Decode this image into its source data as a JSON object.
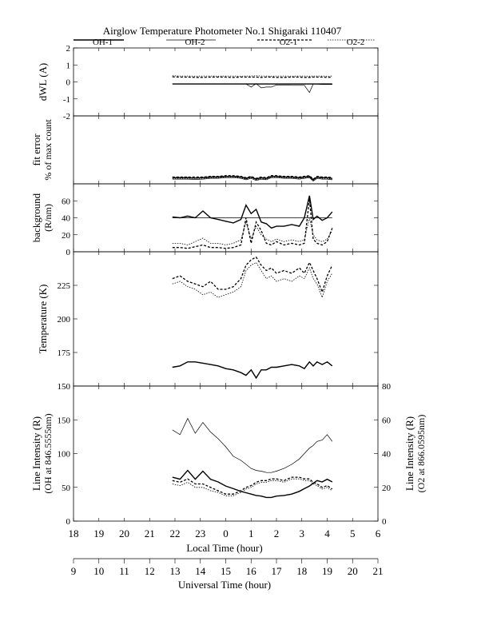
{
  "title": "Airglow Temperature Photometer No.1   Shigaraki   110407",
  "legend": [
    {
      "label": "OH-1",
      "style": "solid-thick"
    },
    {
      "label": "OH-2",
      "style": "solid-thin"
    },
    {
      "label": "O2-1",
      "style": "dashed-thick"
    },
    {
      "label": "O2-2",
      "style": "dotted-thin"
    }
  ],
  "x_axes": {
    "local": {
      "label": "Local Time (hour)",
      "ticks": [
        "18",
        "19",
        "20",
        "21",
        "22",
        "23",
        "0",
        "1",
        "2",
        "3",
        "4",
        "5",
        "6"
      ]
    },
    "universal": {
      "label": "Universal Time (hour)",
      "ticks": [
        "9",
        "10",
        "11",
        "12",
        "13",
        "14",
        "15",
        "16",
        "17",
        "18",
        "19",
        "20",
        "21"
      ]
    }
  },
  "chart_data": [
    {
      "type": "line",
      "panel": "dwl",
      "ylabel": "dWL (A)",
      "ylim": [
        -2,
        2
      ],
      "yticks": [
        "2",
        "1",
        "0",
        "-1",
        "-2"
      ],
      "x": [
        12.9,
        13.2,
        13.5,
        13.8,
        14.1,
        14.4,
        14.7,
        15.0,
        15.3,
        15.6,
        15.8,
        16.0,
        16.2,
        16.4,
        16.6,
        16.8,
        17.0,
        17.3,
        17.6,
        17.9,
        18.1,
        18.3,
        18.45,
        18.6,
        18.8,
        19.0,
        19.2
      ],
      "series": [
        {
          "name": "OH-1",
          "values": [
            -0.12,
            -0.12,
            -0.12,
            -0.12,
            -0.12,
            -0.12,
            -0.12,
            -0.12,
            -0.12,
            -0.12,
            -0.12,
            -0.12,
            -0.12,
            -0.12,
            -0.12,
            -0.12,
            -0.12,
            -0.12,
            -0.12,
            -0.12,
            -0.12,
            -0.12,
            -0.12,
            -0.12,
            -0.12,
            -0.12,
            -0.12
          ]
        },
        {
          "name": "OH-2",
          "values": [
            -0.12,
            -0.12,
            -0.12,
            -0.12,
            -0.12,
            -0.12,
            -0.12,
            -0.12,
            -0.12,
            -0.12,
            -0.12,
            -0.3,
            -0.1,
            -0.35,
            -0.3,
            -0.3,
            -0.18,
            -0.18,
            -0.2,
            -0.2,
            -0.2,
            -0.62,
            -0.12,
            -0.12,
            -0.15,
            -0.15,
            -0.15
          ]
        },
        {
          "name": "O2-1",
          "values": [
            0.3,
            0.28,
            0.28,
            0.27,
            0.27,
            0.28,
            0.28,
            0.28,
            0.27,
            0.28,
            0.28,
            0.28,
            0.28,
            0.27,
            0.28,
            0.28,
            0.27,
            0.27,
            0.28,
            0.28,
            0.27,
            0.27,
            0.28,
            0.28,
            0.28,
            0.27,
            0.28
          ]
        },
        {
          "name": "O2-2",
          "values": [
            0.36,
            0.35,
            0.35,
            0.34,
            0.35,
            0.35,
            0.34,
            0.35,
            0.35,
            0.34,
            0.35,
            0.35,
            0.36,
            0.35,
            0.35,
            0.34,
            0.35,
            0.35,
            0.34,
            0.35,
            0.35,
            0.34,
            0.35,
            0.35,
            0.35,
            0.34,
            0.35
          ]
        }
      ]
    },
    {
      "type": "line",
      "panel": "fit_error",
      "ylabel": "fit error",
      "ylabel2": "% of max count",
      "ylim": [
        0,
        10
      ],
      "x": [
        12.9,
        13.2,
        13.5,
        13.8,
        14.1,
        14.4,
        14.7,
        15.0,
        15.3,
        15.6,
        15.8,
        16.0,
        16.2,
        16.4,
        16.6,
        16.8,
        17.0,
        17.3,
        17.6,
        17.9,
        18.1,
        18.3,
        18.45,
        18.6,
        18.8,
        19.0,
        19.2
      ],
      "series": [
        {
          "name": "OH-1",
          "values": [
            0.9,
            0.9,
            0.9,
            0.85,
            0.9,
            1.0,
            1.0,
            1.1,
            1.1,
            1.0,
            0.8,
            1.0,
            0.7,
            0.9,
            0.8,
            1.1,
            1.1,
            1.0,
            1.0,
            0.9,
            1.0,
            1.1,
            0.6,
            1.0,
            0.9,
            0.9,
            0.8
          ]
        },
        {
          "name": "OH-2",
          "values": [
            0.7,
            0.7,
            0.7,
            0.65,
            0.7,
            0.8,
            0.8,
            0.9,
            0.9,
            0.8,
            0.6,
            0.8,
            0.5,
            0.7,
            0.6,
            0.9,
            0.9,
            0.8,
            0.8,
            0.7,
            0.8,
            0.9,
            0.4,
            0.8,
            0.7,
            0.7,
            0.6
          ]
        },
        {
          "name": "O2-1",
          "values": [
            1.0,
            1.0,
            1.0,
            1.0,
            1.0,
            1.1,
            1.1,
            1.2,
            1.2,
            1.1,
            0.9,
            1.1,
            0.8,
            1.0,
            0.9,
            1.2,
            1.2,
            1.1,
            1.1,
            1.0,
            1.1,
            1.2,
            0.7,
            1.1,
            1.0,
            1.0,
            0.9
          ]
        },
        {
          "name": "O2-2",
          "values": [
            0.8,
            0.8,
            0.8,
            0.8,
            0.8,
            0.9,
            0.9,
            1.0,
            1.0,
            0.9,
            0.7,
            0.9,
            0.6,
            0.8,
            0.7,
            1.0,
            1.0,
            0.9,
            0.9,
            0.8,
            0.9,
            1.0,
            0.5,
            0.9,
            0.8,
            0.8,
            0.7
          ]
        }
      ]
    },
    {
      "type": "line",
      "panel": "background",
      "ylabel": "background",
      "ylabel2": "(R/nm)",
      "ylim": [
        0,
        80
      ],
      "yticks": [
        "60",
        "40",
        "20",
        "0"
      ],
      "x": [
        12.9,
        13.2,
        13.5,
        13.8,
        14.1,
        14.4,
        14.7,
        15.0,
        15.3,
        15.6,
        15.8,
        16.0,
        16.2,
        16.4,
        16.6,
        16.8,
        17.0,
        17.3,
        17.6,
        17.9,
        18.1,
        18.3,
        18.45,
        18.6,
        18.8,
        19.0,
        19.2
      ],
      "series": [
        {
          "name": "OH-1",
          "values": [
            41,
            40,
            42,
            40,
            48,
            40,
            38,
            36,
            34,
            38,
            55,
            45,
            50,
            35,
            33,
            28,
            30,
            30,
            32,
            30,
            40,
            66,
            38,
            42,
            37,
            40,
            47
          ]
        },
        {
          "name": "OH-2",
          "values": [
            40,
            40,
            40,
            40,
            40,
            40,
            40,
            40,
            40,
            40,
            40,
            40,
            40,
            40,
            40,
            40,
            40,
            40,
            40,
            40,
            40,
            40,
            40,
            40,
            40,
            40,
            40
          ]
        },
        {
          "name": "O2-1",
          "values": [
            5,
            5,
            4,
            6,
            8,
            5,
            5,
            4,
            5,
            8,
            40,
            10,
            35,
            25,
            10,
            8,
            12,
            8,
            10,
            8,
            10,
            62,
            15,
            10,
            8,
            12,
            28
          ]
        },
        {
          "name": "O2-2",
          "values": [
            10,
            10,
            8,
            12,
            16,
            10,
            10,
            8,
            10,
            14,
            35,
            15,
            30,
            20,
            15,
            12,
            15,
            12,
            14,
            12,
            14,
            40,
            20,
            14,
            12,
            15,
            25
          ]
        }
      ]
    },
    {
      "type": "line",
      "panel": "temperature",
      "ylabel": "Temperature (K)",
      "ylim": [
        150,
        250
      ],
      "yticks": [
        "225",
        "200",
        "175",
        "150"
      ],
      "x": [
        12.9,
        13.2,
        13.5,
        13.8,
        14.1,
        14.4,
        14.7,
        15.0,
        15.3,
        15.6,
        15.8,
        16.0,
        16.2,
        16.4,
        16.6,
        16.8,
        17.0,
        17.3,
        17.6,
        17.9,
        18.1,
        18.3,
        18.45,
        18.6,
        18.8,
        19.0,
        19.2
      ],
      "series": [
        {
          "name": "OH-1",
          "values": [
            164,
            165,
            168,
            168,
            167,
            166,
            165,
            163,
            162,
            160,
            158,
            162,
            156,
            162,
            162,
            164,
            164,
            165,
            166,
            165,
            163,
            168,
            165,
            168,
            166,
            168,
            165
          ]
        },
        {
          "name": "OH-2",
          "values": [
            164,
            165,
            168,
            168,
            167,
            166,
            165,
            163,
            162,
            160,
            158,
            162,
            156,
            162,
            162,
            164,
            164,
            165,
            166,
            165,
            163,
            168,
            165,
            168,
            166,
            168,
            165
          ]
        },
        {
          "name": "O2-1",
          "values": [
            230,
            232,
            228,
            226,
            224,
            228,
            222,
            222,
            224,
            230,
            240,
            244,
            246,
            240,
            236,
            238,
            234,
            236,
            234,
            238,
            234,
            242,
            236,
            230,
            220,
            232,
            240
          ]
        },
        {
          "name": "O2-2",
          "values": [
            226,
            228,
            224,
            222,
            218,
            220,
            216,
            218,
            220,
            224,
            236,
            240,
            242,
            236,
            230,
            232,
            228,
            230,
            228,
            232,
            230,
            238,
            230,
            226,
            216,
            228,
            234
          ]
        }
      ]
    },
    {
      "type": "line",
      "panel": "intensity",
      "ylabel": "Line Intensity (R)",
      "ylabel2": "(OH at 846.5555nm)",
      "ylabel_right": "Line Intensity (R)",
      "ylabel_right2": "(O2 at 866.0595nm)",
      "ylim": [
        0,
        200
      ],
      "ylim_right": [
        0,
        80
      ],
      "yticks": [
        "150",
        "100",
        "50",
        "0"
      ],
      "yticks_right": [
        "80",
        "60",
        "40",
        "20",
        "0"
      ],
      "x": [
        12.9,
        13.2,
        13.5,
        13.8,
        14.1,
        14.4,
        14.7,
        15.0,
        15.3,
        15.6,
        15.8,
        16.0,
        16.2,
        16.4,
        16.6,
        16.8,
        17.0,
        17.3,
        17.6,
        17.9,
        18.1,
        18.3,
        18.45,
        18.6,
        18.8,
        19.0,
        19.2
      ],
      "series": [
        {
          "name": "OH-1",
          "values": [
            65,
            62,
            75,
            62,
            74,
            62,
            58,
            52,
            48,
            44,
            42,
            40,
            38,
            37,
            35,
            35,
            37,
            38,
            40,
            44,
            48,
            52,
            56,
            60,
            58,
            62,
            58
          ]
        },
        {
          "name": "OH-2",
          "values": [
            135,
            128,
            152,
            130,
            146,
            132,
            122,
            110,
            96,
            90,
            84,
            78,
            75,
            74,
            72,
            72,
            74,
            78,
            84,
            92,
            100,
            108,
            112,
            118,
            120,
            128,
            118
          ]
        },
        {
          "name": "O2-1",
          "values": [
            24,
            23,
            25,
            22,
            22,
            20,
            18,
            16,
            16,
            18,
            20,
            21,
            23,
            24,
            24,
            25,
            25,
            24,
            26,
            26,
            25,
            25,
            23,
            22,
            20,
            21,
            19
          ]
        },
        {
          "name": "O2-2",
          "values": [
            22,
            21,
            23,
            20,
            20,
            18,
            17,
            15,
            15,
            17,
            19,
            20,
            22,
            23,
            23,
            24,
            24,
            23,
            25,
            25,
            24,
            24,
            22,
            21,
            19,
            20,
            18
          ]
        }
      ]
    }
  ]
}
